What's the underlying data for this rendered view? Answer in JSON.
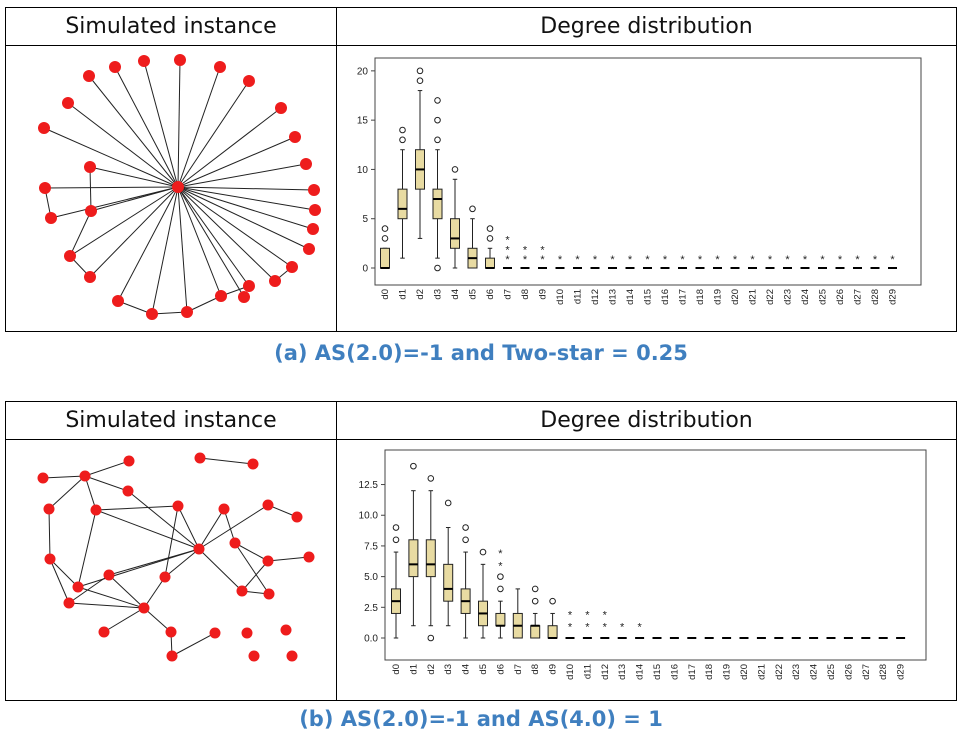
{
  "colors": {
    "node": "#ee1c1c",
    "box_fill": "#e8dba2",
    "caption": "#3f7fbf"
  },
  "panels": [
    {
      "left_header": "Simulated instance",
      "right_header": "Degree distribution",
      "caption": "(a)  AS(2.0)=-1 and Two-star = 0.25",
      "chart_data": {
        "type": "boxplot",
        "title": "",
        "yticks": [
          "0",
          "5",
          "10",
          "15",
          "20"
        ],
        "ylim": [
          0,
          21
        ],
        "categories": [
          "d0",
          "d1",
          "d2",
          "d3",
          "d4",
          "d5",
          "d6",
          "d7",
          "d8",
          "d9",
          "d10",
          "d11",
          "d12",
          "d13",
          "d14",
          "d15",
          "d16",
          "d17",
          "d18",
          "d19",
          "d20",
          "d21",
          "d22",
          "d23",
          "d24",
          "d25",
          "d26",
          "d27",
          "d28",
          "d29"
        ],
        "boxes": [
          {
            "min": 0,
            "q1": 0,
            "median": 0,
            "q3": 2,
            "max": 2,
            "outliers": [
              3,
              4
            ],
            "extremes": []
          },
          {
            "min": 1,
            "q1": 5,
            "median": 6,
            "q3": 8,
            "max": 12,
            "outliers": [
              13,
              14
            ],
            "extremes": []
          },
          {
            "min": 3,
            "q1": 8,
            "median": 10,
            "q3": 12,
            "max": 18,
            "outliers": [
              19,
              20
            ],
            "extremes": []
          },
          {
            "min": 1,
            "q1": 5,
            "median": 7,
            "q3": 8,
            "max": 12,
            "outliers": [
              0,
              13,
              15,
              17
            ],
            "extremes": []
          },
          {
            "min": 0,
            "q1": 2,
            "median": 3,
            "q3": 5,
            "max": 9,
            "outliers": [
              10
            ],
            "extremes": []
          },
          {
            "min": 0,
            "q1": 0,
            "median": 1,
            "q3": 2,
            "max": 5,
            "outliers": [
              6
            ],
            "extremes": []
          },
          {
            "min": 0,
            "q1": 0,
            "median": 0,
            "q3": 1,
            "max": 2,
            "outliers": [
              3,
              4
            ],
            "extremes": []
          },
          {
            "min": 0,
            "q1": 0,
            "median": 0,
            "q3": 0,
            "max": 0,
            "outliers": [],
            "extremes": [
              1,
              2,
              3
            ]
          },
          {
            "min": 0,
            "q1": 0,
            "median": 0,
            "q3": 0,
            "max": 0,
            "outliers": [],
            "extremes": [
              1,
              2
            ]
          },
          {
            "min": 0,
            "q1": 0,
            "median": 0,
            "q3": 0,
            "max": 0,
            "outliers": [],
            "extremes": [
              1,
              2
            ]
          },
          {
            "min": 0,
            "q1": 0,
            "median": 0,
            "q3": 0,
            "max": 0,
            "outliers": [],
            "extremes": [
              1
            ]
          },
          {
            "min": 0,
            "q1": 0,
            "median": 0,
            "q3": 0,
            "max": 0,
            "outliers": [],
            "extremes": [
              1
            ]
          },
          {
            "min": 0,
            "q1": 0,
            "median": 0,
            "q3": 0,
            "max": 0,
            "outliers": [],
            "extremes": [
              1
            ]
          },
          {
            "min": 0,
            "q1": 0,
            "median": 0,
            "q3": 0,
            "max": 0,
            "outliers": [],
            "extremes": [
              1
            ]
          },
          {
            "min": 0,
            "q1": 0,
            "median": 0,
            "q3": 0,
            "max": 0,
            "outliers": [],
            "extremes": [
              1
            ]
          },
          {
            "min": 0,
            "q1": 0,
            "median": 0,
            "q3": 0,
            "max": 0,
            "outliers": [],
            "extremes": [
              1
            ]
          },
          {
            "min": 0,
            "q1": 0,
            "median": 0,
            "q3": 0,
            "max": 0,
            "outliers": [],
            "extremes": [
              1
            ]
          },
          {
            "min": 0,
            "q1": 0,
            "median": 0,
            "q3": 0,
            "max": 0,
            "outliers": [],
            "extremes": [
              1
            ]
          },
          {
            "min": 0,
            "q1": 0,
            "median": 0,
            "q3": 0,
            "max": 0,
            "outliers": [],
            "extremes": [
              1
            ]
          },
          {
            "min": 0,
            "q1": 0,
            "median": 0,
            "q3": 0,
            "max": 0,
            "outliers": [],
            "extremes": [
              1
            ]
          },
          {
            "min": 0,
            "q1": 0,
            "median": 0,
            "q3": 0,
            "max": 0,
            "outliers": [],
            "extremes": [
              1
            ]
          },
          {
            "min": 0,
            "q1": 0,
            "median": 0,
            "q3": 0,
            "max": 0,
            "outliers": [],
            "extremes": [
              1
            ]
          },
          {
            "min": 0,
            "q1": 0,
            "median": 0,
            "q3": 0,
            "max": 0,
            "outliers": [],
            "extremes": [
              1
            ]
          },
          {
            "min": 0,
            "q1": 0,
            "median": 0,
            "q3": 0,
            "max": 0,
            "outliers": [],
            "extremes": [
              1
            ]
          },
          {
            "min": 0,
            "q1": 0,
            "median": 0,
            "q3": 0,
            "max": 0,
            "outliers": [],
            "extremes": [
              1
            ]
          },
          {
            "min": 0,
            "q1": 0,
            "median": 0,
            "q3": 0,
            "max": 0,
            "outliers": [],
            "extremes": [
              1
            ]
          },
          {
            "min": 0,
            "q1": 0,
            "median": 0,
            "q3": 0,
            "max": 0,
            "outliers": [],
            "extremes": [
              1
            ]
          },
          {
            "min": 0,
            "q1": 0,
            "median": 0,
            "q3": 0,
            "max": 0,
            "outliers": [],
            "extremes": [
              1
            ]
          },
          {
            "min": 0,
            "q1": 0,
            "median": 0,
            "q3": 0,
            "max": 0,
            "outliers": [],
            "extremes": [
              1
            ]
          },
          {
            "min": 0,
            "q1": 0,
            "median": 0,
            "q3": 0,
            "max": 0,
            "outliers": [],
            "extremes": [
              1
            ]
          }
        ]
      }
    },
    {
      "left_header": "Simulated instance",
      "right_header": "Degree distribution",
      "caption": "(b)  AS(2.0)=-1 and AS(4.0) = 1",
      "chart_data": {
        "type": "boxplot",
        "title": "",
        "yticks": [
          "0.0",
          "2.5",
          "5.0",
          "7.5",
          "10.0",
          "12.5"
        ],
        "ylim": [
          0,
          14.5
        ],
        "categories": [
          "d0",
          "d1",
          "d2",
          "d3",
          "d4",
          "d5",
          "d6",
          "d7",
          "d8",
          "d9",
          "d10",
          "d11",
          "d12",
          "d13",
          "d14",
          "d15",
          "d16",
          "d17",
          "d18",
          "d19",
          "d20",
          "d21",
          "d22",
          "d23",
          "d24",
          "d25",
          "d26",
          "d27",
          "d28",
          "d29"
        ],
        "boxes": [
          {
            "min": 0,
            "q1": 2,
            "median": 3,
            "q3": 4,
            "max": 7,
            "outliers": [
              8,
              9
            ],
            "extremes": []
          },
          {
            "min": 1,
            "q1": 5,
            "median": 6,
            "q3": 8,
            "max": 12,
            "outliers": [
              14
            ],
            "extremes": []
          },
          {
            "min": 1,
            "q1": 5,
            "median": 6,
            "q3": 8,
            "max": 12,
            "outliers": [
              0,
              13
            ],
            "extremes": []
          },
          {
            "min": 1,
            "q1": 3,
            "median": 4,
            "q3": 6,
            "max": 9,
            "outliers": [
              11
            ],
            "extremes": []
          },
          {
            "min": 0,
            "q1": 2,
            "median": 3,
            "q3": 4,
            "max": 7,
            "outliers": [
              8,
              9
            ],
            "extremes": []
          },
          {
            "min": 0,
            "q1": 1,
            "median": 2,
            "q3": 3,
            "max": 6,
            "outliers": [
              7
            ],
            "extremes": []
          },
          {
            "min": 0,
            "q1": 1,
            "median": 1,
            "q3": 2,
            "max": 3,
            "outliers": [
              4,
              5
            ],
            "extremes": [
              6,
              7
            ]
          },
          {
            "min": 0,
            "q1": 0,
            "median": 1,
            "q3": 2,
            "max": 4,
            "outliers": [],
            "extremes": []
          },
          {
            "min": 0,
            "q1": 0,
            "median": 1,
            "q3": 1,
            "max": 2,
            "outliers": [
              3,
              4
            ],
            "extremes": []
          },
          {
            "min": 0,
            "q1": 0,
            "median": 0,
            "q3": 1,
            "max": 2,
            "outliers": [
              3
            ],
            "extremes": []
          },
          {
            "min": 0,
            "q1": 0,
            "median": 0,
            "q3": 0,
            "max": 0,
            "outliers": [],
            "extremes": [
              1,
              2
            ]
          },
          {
            "min": 0,
            "q1": 0,
            "median": 0,
            "q3": 0,
            "max": 0,
            "outliers": [],
            "extremes": [
              1,
              2
            ]
          },
          {
            "min": 0,
            "q1": 0,
            "median": 0,
            "q3": 0,
            "max": 0,
            "outliers": [],
            "extremes": [
              1,
              2
            ]
          },
          {
            "min": 0,
            "q1": 0,
            "median": 0,
            "q3": 0,
            "max": 0,
            "outliers": [],
            "extremes": [
              1
            ]
          },
          {
            "min": 0,
            "q1": 0,
            "median": 0,
            "q3": 0,
            "max": 0,
            "outliers": [],
            "extremes": [
              1
            ]
          },
          {
            "min": 0,
            "q1": 0,
            "median": 0,
            "q3": 0,
            "max": 0,
            "outliers": [],
            "extremes": []
          },
          {
            "min": 0,
            "q1": 0,
            "median": 0,
            "q3": 0,
            "max": 0,
            "outliers": [],
            "extremes": []
          },
          {
            "min": 0,
            "q1": 0,
            "median": 0,
            "q3": 0,
            "max": 0,
            "outliers": [],
            "extremes": []
          },
          {
            "min": 0,
            "q1": 0,
            "median": 0,
            "q3": 0,
            "max": 0,
            "outliers": [],
            "extremes": []
          },
          {
            "min": 0,
            "q1": 0,
            "median": 0,
            "q3": 0,
            "max": 0,
            "outliers": [],
            "extremes": []
          },
          {
            "min": 0,
            "q1": 0,
            "median": 0,
            "q3": 0,
            "max": 0,
            "outliers": [],
            "extremes": []
          },
          {
            "min": 0,
            "q1": 0,
            "median": 0,
            "q3": 0,
            "max": 0,
            "outliers": [],
            "extremes": []
          },
          {
            "min": 0,
            "q1": 0,
            "median": 0,
            "q3": 0,
            "max": 0,
            "outliers": [],
            "extremes": []
          },
          {
            "min": 0,
            "q1": 0,
            "median": 0,
            "q3": 0,
            "max": 0,
            "outliers": [],
            "extremes": []
          },
          {
            "min": 0,
            "q1": 0,
            "median": 0,
            "q3": 0,
            "max": 0,
            "outliers": [],
            "extremes": []
          },
          {
            "min": 0,
            "q1": 0,
            "median": 0,
            "q3": 0,
            "max": 0,
            "outliers": [],
            "extremes": []
          },
          {
            "min": 0,
            "q1": 0,
            "median": 0,
            "q3": 0,
            "max": 0,
            "outliers": [],
            "extremes": []
          },
          {
            "min": 0,
            "q1": 0,
            "median": 0,
            "q3": 0,
            "max": 0,
            "outliers": [],
            "extremes": []
          },
          {
            "min": 0,
            "q1": 0,
            "median": 0,
            "q3": 0,
            "max": 0,
            "outliers": [],
            "extremes": []
          },
          {
            "min": 0,
            "q1": 0,
            "median": 0,
            "q3": 0,
            "max": 0,
            "outliers": [],
            "extremes": []
          }
        ]
      }
    }
  ]
}
